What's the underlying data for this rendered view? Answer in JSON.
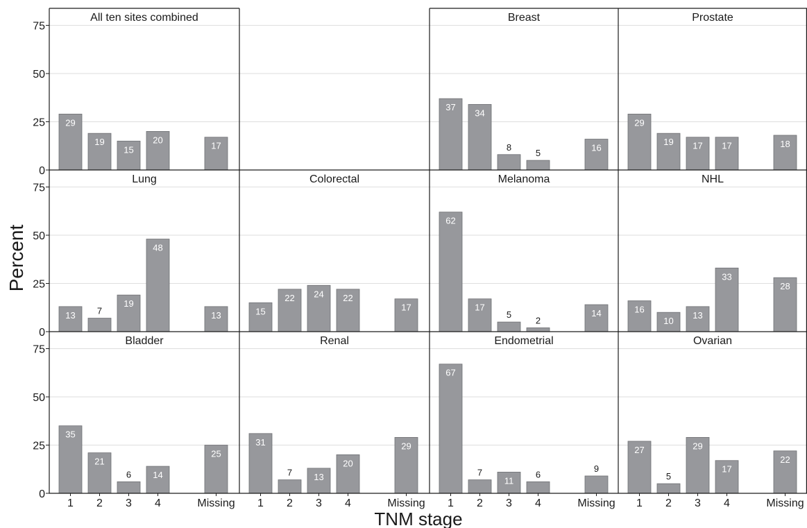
{
  "chart_data": {
    "type": "bar",
    "ylabel": "Percent",
    "xlabel": "TNM stage",
    "categories": [
      "1",
      "2",
      "3",
      "4",
      "Missing"
    ],
    "ylim": [
      0,
      80
    ],
    "yticks": [
      0,
      25,
      50,
      75
    ],
    "grid": true,
    "colors": {
      "bar": "#97989c",
      "bar_edge": "#6f7074",
      "grid": "#dedede",
      "frame": "#1a1a1a",
      "label_inside": "#ffffff",
      "label_outside": "#1a1a1a"
    },
    "panels": [
      {
        "title": "All ten sites combined",
        "values": [
          29,
          19,
          15,
          20,
          17
        ]
      },
      null,
      {
        "title": "Breast",
        "values": [
          37,
          34,
          8,
          5,
          16
        ]
      },
      {
        "title": "Prostate",
        "values": [
          29,
          19,
          17,
          17,
          18
        ]
      },
      {
        "title": "Lung",
        "values": [
          13,
          7,
          19,
          48,
          13
        ]
      },
      {
        "title": "Colorectal",
        "values": [
          15,
          22,
          24,
          22,
          17
        ]
      },
      {
        "title": "Melanoma",
        "values": [
          62,
          17,
          5,
          2,
          14
        ]
      },
      {
        "title": "NHL",
        "values": [
          16,
          10,
          13,
          33,
          28
        ]
      },
      {
        "title": "Bladder",
        "values": [
          35,
          21,
          6,
          14,
          25
        ]
      },
      {
        "title": "Renal",
        "values": [
          31,
          7,
          13,
          20,
          29
        ]
      },
      {
        "title": "Endometrial",
        "values": [
          67,
          7,
          11,
          6,
          9
        ]
      },
      {
        "title": "Ovarian",
        "values": [
          27,
          5,
          29,
          17,
          22
        ]
      }
    ]
  }
}
